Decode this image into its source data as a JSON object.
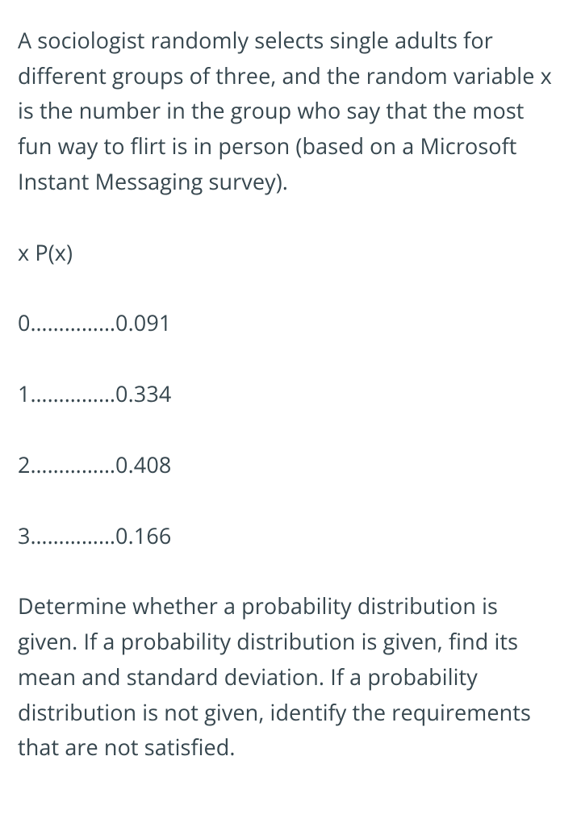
{
  "problem": {
    "intro": "A sociologist randomly selects single adults for different groups of three, and the random variable x is the number in the group who say that the most fun way to flirt is in person (based on a Microsoft Instant Messaging survey).",
    "table_header": "x P(x)",
    "rows": [
      "0……………0.091",
      "1……………0.334",
      "2……………0.408",
      "3……………0.166"
    ],
    "question": "Determine whether a probability distribution is given. If a probability distribution is given, find its mean and standard deviation. If a probability distribution is not given, identify the requirements that are not satisfied.",
    "text_color": "#37474f",
    "background_color": "#ffffff",
    "fontsize": 27,
    "line_height": 1.62
  }
}
